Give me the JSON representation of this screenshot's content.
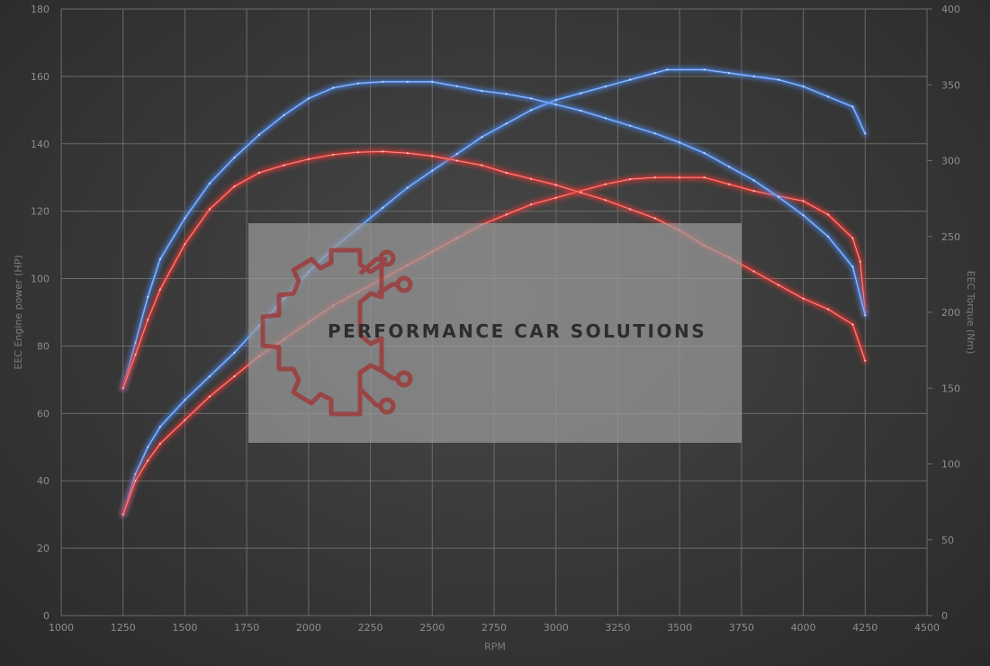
{
  "chart_data": {
    "type": "line",
    "xlabel": "RPM",
    "ylabel_left": "EEC Engine power (HP)",
    "ylabel_right": "EEC Torque (Nm)",
    "xlim": [
      1000,
      4500
    ],
    "x_ticks": [
      1000,
      1250,
      1500,
      1750,
      2000,
      2250,
      2500,
      2750,
      3000,
      3250,
      3500,
      3750,
      4000,
      4250,
      4500
    ],
    "ylim_left": [
      0,
      180
    ],
    "y_ticks_left": [
      0,
      20,
      40,
      60,
      80,
      100,
      120,
      140,
      160,
      180
    ],
    "ylim_right": [
      0,
      400
    ],
    "y_ticks_right": [
      0,
      50,
      100,
      150,
      200,
      250,
      300,
      350,
      400
    ],
    "grid": true,
    "series": [
      {
        "axis": "left",
        "color": "#4a86e8",
        "points": [
          [
            1250,
            30
          ],
          [
            1300,
            42
          ],
          [
            1350,
            50
          ],
          [
            1400,
            56
          ],
          [
            1500,
            64
          ],
          [
            1600,
            71
          ],
          [
            1700,
            78
          ],
          [
            1800,
            86
          ],
          [
            1900,
            94
          ],
          [
            2000,
            102
          ],
          [
            2100,
            109
          ],
          [
            2200,
            115
          ],
          [
            2300,
            121
          ],
          [
            2400,
            127
          ],
          [
            2500,
            132
          ],
          [
            2600,
            137
          ],
          [
            2700,
            142
          ],
          [
            2800,
            146
          ],
          [
            2900,
            150
          ],
          [
            3000,
            153
          ],
          [
            3100,
            155
          ],
          [
            3200,
            157
          ],
          [
            3300,
            159
          ],
          [
            3400,
            161
          ],
          [
            3450,
            162
          ],
          [
            3600,
            162
          ],
          [
            3700,
            161
          ],
          [
            3800,
            160
          ],
          [
            3900,
            159
          ],
          [
            4000,
            157
          ],
          [
            4100,
            154
          ],
          [
            4200,
            151
          ],
          [
            4250,
            143
          ]
        ]
      },
      {
        "axis": "left",
        "color": "#e53935",
        "points": [
          [
            1250,
            30
          ],
          [
            1300,
            40
          ],
          [
            1350,
            46
          ],
          [
            1400,
            51
          ],
          [
            1500,
            58
          ],
          [
            1600,
            65
          ],
          [
            1700,
            71
          ],
          [
            1800,
            77
          ],
          [
            1900,
            82
          ],
          [
            2000,
            87
          ],
          [
            2100,
            92
          ],
          [
            2200,
            96
          ],
          [
            2300,
            100
          ],
          [
            2400,
            104
          ],
          [
            2500,
            108
          ],
          [
            2600,
            112
          ],
          [
            2700,
            116
          ],
          [
            2800,
            119
          ],
          [
            2900,
            122
          ],
          [
            3000,
            124
          ],
          [
            3100,
            126
          ],
          [
            3200,
            128
          ],
          [
            3300,
            129.5
          ],
          [
            3400,
            130
          ],
          [
            3500,
            130
          ],
          [
            3600,
            130
          ],
          [
            3700,
            128
          ],
          [
            3800,
            126
          ],
          [
            3900,
            124.5
          ],
          [
            4000,
            123
          ],
          [
            4100,
            119
          ],
          [
            4200,
            112
          ],
          [
            4230,
            105
          ],
          [
            4250,
            90
          ]
        ]
      },
      {
        "axis": "right",
        "color": "#4a86e8",
        "points": [
          [
            1250,
            150
          ],
          [
            1300,
            180
          ],
          [
            1350,
            210
          ],
          [
            1400,
            235
          ],
          [
            1500,
            262
          ],
          [
            1600,
            285
          ],
          [
            1700,
            302
          ],
          [
            1800,
            317
          ],
          [
            1900,
            330
          ],
          [
            2000,
            341
          ],
          [
            2100,
            348
          ],
          [
            2200,
            351
          ],
          [
            2300,
            352
          ],
          [
            2400,
            352
          ],
          [
            2500,
            352
          ],
          [
            2600,
            349
          ],
          [
            2700,
            346
          ],
          [
            2800,
            344
          ],
          [
            2900,
            341
          ],
          [
            3000,
            337
          ],
          [
            3100,
            333
          ],
          [
            3200,
            328
          ],
          [
            3300,
            323
          ],
          [
            3400,
            318
          ],
          [
            3500,
            312
          ],
          [
            3600,
            305
          ],
          [
            3700,
            296
          ],
          [
            3800,
            287
          ],
          [
            3900,
            276
          ],
          [
            4000,
            264
          ],
          [
            4100,
            250
          ],
          [
            4200,
            230
          ],
          [
            4250,
            198
          ]
        ]
      },
      {
        "axis": "right",
        "color": "#e53935",
        "points": [
          [
            1250,
            150
          ],
          [
            1300,
            172
          ],
          [
            1350,
            195
          ],
          [
            1400,
            215
          ],
          [
            1500,
            245
          ],
          [
            1600,
            268
          ],
          [
            1700,
            283
          ],
          [
            1800,
            292
          ],
          [
            1900,
            297
          ],
          [
            2000,
            301
          ],
          [
            2100,
            304
          ],
          [
            2200,
            305.5
          ],
          [
            2300,
            306
          ],
          [
            2400,
            305
          ],
          [
            2500,
            303
          ],
          [
            2600,
            300
          ],
          [
            2700,
            297
          ],
          [
            2800,
            292
          ],
          [
            2900,
            288
          ],
          [
            3000,
            284
          ],
          [
            3100,
            279
          ],
          [
            3200,
            274
          ],
          [
            3300,
            268
          ],
          [
            3400,
            262
          ],
          [
            3500,
            254
          ],
          [
            3600,
            244
          ],
          [
            3700,
            236
          ],
          [
            3800,
            227
          ],
          [
            3900,
            218
          ],
          [
            4000,
            209
          ],
          [
            4100,
            202
          ],
          [
            4200,
            192
          ],
          [
            4250,
            168
          ]
        ]
      }
    ]
  },
  "watermark": {
    "text": "PERFORMANCE CAR SOLUTIONS",
    "logo_color": "#a03232",
    "box_color": "#9a9a9a"
  }
}
